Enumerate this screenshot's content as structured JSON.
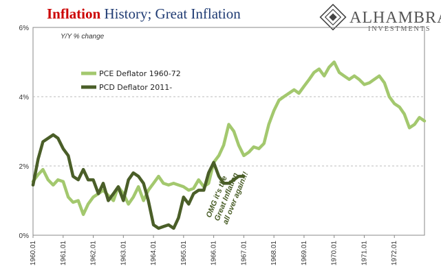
{
  "colors": {
    "title_accent": "#cc0000",
    "title_main": "#1f3b73",
    "pce": "#a3c86e",
    "pcd": "#4a5e28",
    "grid": "#bbbbbb",
    "annotation": "#4a5e28",
    "logo": "#555555"
  },
  "title": {
    "accent": "Inflation",
    "rest": " History; Great Inflation"
  },
  "logo": {
    "name": "ALHAMBRA",
    "sub": "INVESTMENTS"
  },
  "subtitle": "Y/Y % change",
  "annotation": [
    "OMG it's the",
    "Great Inflation",
    "all over again!!!"
  ],
  "chart_data": {
    "type": "line",
    "ylim": [
      0,
      6
    ],
    "xlim": [
      1960.0,
      1973.0
    ],
    "yticks": [
      "0%",
      "2%",
      "4%",
      "6%"
    ],
    "ytick_values": [
      0,
      2,
      4,
      6
    ],
    "xticks": [
      "1960.01",
      "1961.01",
      "1962.01",
      "1963.01",
      "1964.01",
      "1965.01",
      "1966.01",
      "1967.01",
      "1968.01",
      "1969.01",
      "1970.01",
      "1971.01",
      "1972.01"
    ],
    "xtick_values": [
      1960,
      1961,
      1962,
      1963,
      1964,
      1965,
      1966,
      1967,
      1968,
      1969,
      1970,
      1971,
      1972
    ],
    "grid": true,
    "legend_position": "upper-left",
    "series": [
      {
        "name": "PCE Deflator 1960-72",
        "x": [
          1960.0,
          1960.17,
          1960.33,
          1960.5,
          1960.67,
          1960.83,
          1961.0,
          1961.17,
          1961.33,
          1961.5,
          1961.67,
          1961.83,
          1962.0,
          1962.17,
          1962.33,
          1962.5,
          1962.67,
          1962.83,
          1963.0,
          1963.17,
          1963.33,
          1963.5,
          1963.67,
          1963.83,
          1964.0,
          1964.17,
          1964.33,
          1964.5,
          1964.67,
          1964.83,
          1965.0,
          1965.17,
          1965.33,
          1965.5,
          1965.67,
          1965.83,
          1966.0,
          1966.17,
          1966.33,
          1966.5,
          1966.67,
          1966.83,
          1967.0,
          1967.17,
          1967.33,
          1967.5,
          1967.67,
          1967.83,
          1968.0,
          1968.17,
          1968.33,
          1968.5,
          1968.67,
          1968.83,
          1969.0,
          1969.17,
          1969.33,
          1969.5,
          1969.67,
          1969.83,
          1970.0,
          1970.17,
          1970.33,
          1970.5,
          1970.67,
          1970.83,
          1971.0,
          1971.17,
          1971.33,
          1971.5,
          1971.67,
          1971.83,
          1972.0,
          1972.17,
          1972.33,
          1972.5,
          1972.67,
          1972.83,
          1973.0
        ],
        "values": [
          1.55,
          1.75,
          1.9,
          1.6,
          1.45,
          1.6,
          1.55,
          1.1,
          0.95,
          1.0,
          0.6,
          0.9,
          1.1,
          1.2,
          1.3,
          1.15,
          1.0,
          1.4,
          1.2,
          0.9,
          1.1,
          1.4,
          1.0,
          1.3,
          1.5,
          1.7,
          1.5,
          1.45,
          1.5,
          1.45,
          1.4,
          1.3,
          1.35,
          1.6,
          1.4,
          1.5,
          2.1,
          2.3,
          2.6,
          3.2,
          3.0,
          2.6,
          2.3,
          2.4,
          2.55,
          2.5,
          2.65,
          3.2,
          3.6,
          3.9,
          4.0,
          4.1,
          4.2,
          4.1,
          4.3,
          4.5,
          4.7,
          4.8,
          4.6,
          4.85,
          5.0,
          4.7,
          4.6,
          4.5,
          4.6,
          4.5,
          4.35,
          4.4,
          4.5,
          4.6,
          4.4,
          4.0,
          3.8,
          3.7,
          3.5,
          3.1,
          3.2,
          3.4,
          3.3
        ]
      },
      {
        "name": "PCD Deflator 2011-",
        "x": [
          1960.0,
          1960.17,
          1960.33,
          1960.5,
          1960.67,
          1960.83,
          1961.0,
          1961.17,
          1961.33,
          1961.5,
          1961.67,
          1961.83,
          1962.0,
          1962.17,
          1962.33,
          1962.5,
          1962.67,
          1962.83,
          1963.0,
          1963.17,
          1963.33,
          1963.5,
          1963.67,
          1963.83,
          1964.0,
          1964.17,
          1964.33,
          1964.5,
          1964.67,
          1964.83,
          1965.0,
          1965.17,
          1965.33,
          1965.5,
          1965.67,
          1965.83,
          1966.0,
          1966.17,
          1966.33,
          1966.5,
          1966.67,
          1966.83,
          1967.0
        ],
        "values": [
          1.45,
          2.2,
          2.7,
          2.8,
          2.9,
          2.8,
          2.5,
          2.3,
          1.7,
          1.6,
          1.9,
          1.6,
          1.6,
          1.2,
          1.5,
          1.0,
          1.2,
          1.4,
          1.0,
          1.6,
          1.8,
          1.7,
          1.5,
          1.0,
          0.3,
          0.2,
          0.25,
          0.3,
          0.2,
          0.5,
          1.1,
          0.9,
          1.2,
          1.3,
          1.3,
          1.8,
          2.1,
          1.7,
          1.5,
          1.5,
          1.6,
          1.7,
          1.7
        ]
      }
    ]
  }
}
